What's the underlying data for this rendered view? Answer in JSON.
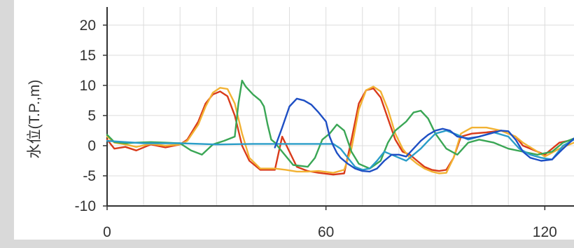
{
  "chart_data": {
    "type": "line",
    "title": "",
    "xlabel": "",
    "ylabel": "水位(T.P.,m)",
    "xlim": [
      0,
      128
    ],
    "ylim": [
      -10,
      23
    ],
    "xticks": [
      0,
      60,
      120
    ],
    "yticks": [
      20,
      15,
      10,
      5,
      0,
      -5,
      -10
    ],
    "x_tick_labels": [
      "0",
      "60",
      "120"
    ],
    "y_tick_labels": [
      "20",
      "15",
      "10",
      "5",
      "0",
      "-5",
      "-10"
    ],
    "grid": true,
    "series": [
      {
        "color": "#d93a1a",
        "points": [
          [
            0,
            1
          ],
          [
            2,
            -0.5
          ],
          [
            5,
            -0.2
          ],
          [
            8,
            -0.8
          ],
          [
            12,
            0.2
          ],
          [
            16,
            -0.3
          ],
          [
            20,
            0.2
          ],
          [
            22,
            1
          ],
          [
            25,
            4
          ],
          [
            27,
            7
          ],
          [
            29,
            8.5
          ],
          [
            31,
            9
          ],
          [
            33,
            8.2
          ],
          [
            35,
            5
          ],
          [
            37,
            0
          ],
          [
            39,
            -2.5
          ],
          [
            42,
            -4
          ],
          [
            46,
            -4
          ],
          [
            48,
            1.5
          ],
          [
            50,
            -1
          ],
          [
            52,
            -3.5
          ],
          [
            55,
            -4.2
          ],
          [
            58,
            -4.5
          ],
          [
            62,
            -4.8
          ],
          [
            65,
            -4.6
          ],
          [
            67,
            1
          ],
          [
            69,
            7
          ],
          [
            71,
            9.2
          ],
          [
            73,
            9.5
          ],
          [
            75,
            8
          ],
          [
            77,
            4.5
          ],
          [
            79,
            1
          ],
          [
            81,
            -1
          ],
          [
            83,
            -1.5
          ],
          [
            85,
            -2.5
          ],
          [
            87,
            -3.5
          ],
          [
            89,
            -4
          ],
          [
            91,
            -4.2
          ],
          [
            93,
            -4
          ],
          [
            95,
            -2
          ],
          [
            97,
            1.5
          ],
          [
            100,
            2
          ],
          [
            104,
            2.2
          ],
          [
            108,
            2.5
          ],
          [
            112,
            1.5
          ],
          [
            114,
            0
          ],
          [
            118,
            -1
          ],
          [
            120,
            -1.5
          ],
          [
            124,
            0.5
          ],
          [
            128,
            1
          ]
        ]
      },
      {
        "color": "#f2b233",
        "points": [
          [
            0,
            1.5
          ],
          [
            2,
            0.5
          ],
          [
            5,
            0.2
          ],
          [
            8,
            -0.2
          ],
          [
            12,
            0.3
          ],
          [
            16,
            0
          ],
          [
            20,
            0.2
          ],
          [
            22,
            0.8
          ],
          [
            25,
            3.5
          ],
          [
            27,
            6.5
          ],
          [
            29,
            8.8
          ],
          [
            31,
            9.6
          ],
          [
            33,
            9.4
          ],
          [
            35,
            7
          ],
          [
            37,
            2
          ],
          [
            39,
            -2
          ],
          [
            42,
            -3.8
          ],
          [
            46,
            -3.8
          ],
          [
            49,
            -4
          ],
          [
            52,
            -4.3
          ],
          [
            55,
            -4.3
          ],
          [
            58,
            -4.2
          ],
          [
            62,
            -4.5
          ],
          [
            65,
            -4
          ],
          [
            67,
            -0.5
          ],
          [
            69,
            6
          ],
          [
            71,
            9.2
          ],
          [
            73,
            9.8
          ],
          [
            75,
            9
          ],
          [
            77,
            6
          ],
          [
            79,
            2
          ],
          [
            81,
            -0.5
          ],
          [
            83,
            -2
          ],
          [
            85,
            -3
          ],
          [
            87,
            -3.8
          ],
          [
            89,
            -4.3
          ],
          [
            91,
            -4.6
          ],
          [
            93,
            -4.5
          ],
          [
            95,
            -2
          ],
          [
            97,
            2
          ],
          [
            100,
            3
          ],
          [
            104,
            3
          ],
          [
            108,
            2.5
          ],
          [
            112,
            1.5
          ],
          [
            114,
            0.5
          ],
          [
            118,
            -1
          ],
          [
            120,
            -1.8
          ],
          [
            124,
            -0.5
          ],
          [
            128,
            0.5
          ]
        ]
      },
      {
        "color": "#3aa655",
        "points": [
          [
            0,
            1.8
          ],
          [
            2,
            0.6
          ],
          [
            5,
            0.4
          ],
          [
            8,
            0.5
          ],
          [
            12,
            0.6
          ],
          [
            16,
            0.5
          ],
          [
            20,
            0.4
          ],
          [
            23,
            -0.8
          ],
          [
            26,
            -1.5
          ],
          [
            29,
            0.2
          ],
          [
            32,
            0.8
          ],
          [
            35,
            1.5
          ],
          [
            36,
            7
          ],
          [
            37,
            10.8
          ],
          [
            38,
            9.8
          ],
          [
            40,
            8.5
          ],
          [
            42,
            7.5
          ],
          [
            43,
            6.5
          ],
          [
            44,
            3.5
          ],
          [
            45,
            1
          ],
          [
            46,
            0.5
          ],
          [
            48,
            -1
          ],
          [
            51,
            -3.2
          ],
          [
            55,
            -3.5
          ],
          [
            57,
            -2
          ],
          [
            59,
            1
          ],
          [
            61,
            2
          ],
          [
            63,
            3.5
          ],
          [
            65,
            2.5
          ],
          [
            67,
            -1
          ],
          [
            69,
            -3
          ],
          [
            72,
            -3.8
          ],
          [
            75,
            -2.5
          ],
          [
            77,
            0.5
          ],
          [
            79,
            2.5
          ],
          [
            82,
            4
          ],
          [
            84,
            5.5
          ],
          [
            86,
            5.8
          ],
          [
            88,
            4.5
          ],
          [
            90,
            2
          ],
          [
            93,
            -0.5
          ],
          [
            96,
            -1.5
          ],
          [
            99,
            0.5
          ],
          [
            102,
            1
          ],
          [
            106,
            0.5
          ],
          [
            110,
            -0.5
          ],
          [
            114,
            -1
          ],
          [
            118,
            -1.5
          ],
          [
            122,
            -1
          ],
          [
            125,
            0.5
          ],
          [
            128,
            1.2
          ]
        ]
      },
      {
        "color": "#2a9dc8",
        "points": [
          [
            0,
            0.8
          ],
          [
            10,
            0.4
          ],
          [
            20,
            0.4
          ],
          [
            30,
            0.2
          ],
          [
            40,
            0.3
          ],
          [
            50,
            0.3
          ],
          [
            60,
            0.3
          ],
          [
            62,
            0.3
          ],
          [
            64,
            -0.5
          ],
          [
            66,
            -2
          ],
          [
            68,
            -3.5
          ],
          [
            70,
            -4
          ],
          [
            72,
            -3.8
          ],
          [
            74,
            -2.5
          ],
          [
            76,
            -1
          ],
          [
            78,
            -1.5
          ],
          [
            80,
            -2
          ],
          [
            82,
            -2.5
          ],
          [
            84,
            -1.5
          ],
          [
            86,
            -0.5
          ],
          [
            88,
            0.8
          ],
          [
            90,
            2
          ],
          [
            93,
            2.5
          ],
          [
            96,
            1.8
          ],
          [
            99,
            1
          ],
          [
            102,
            1.5
          ],
          [
            106,
            2.2
          ],
          [
            110,
            1.5
          ],
          [
            113,
            -0.5
          ],
          [
            116,
            -1.5
          ],
          [
            119,
            -2
          ],
          [
            122,
            -2.3
          ],
          [
            125,
            0
          ],
          [
            128,
            1
          ]
        ]
      },
      {
        "color": "#1e4fc4",
        "points": [
          [
            46,
            -0.3
          ],
          [
            48,
            3
          ],
          [
            50,
            6.5
          ],
          [
            52,
            7.8
          ],
          [
            54,
            7.5
          ],
          [
            56,
            6.8
          ],
          [
            58,
            5.5
          ],
          [
            60,
            4
          ],
          [
            61,
            1.5
          ],
          [
            62,
            0
          ],
          [
            63,
            -1.2
          ],
          [
            64,
            -2
          ],
          [
            66,
            -3
          ],
          [
            68,
            -3.8
          ],
          [
            70,
            -4.2
          ],
          [
            72,
            -4.3
          ],
          [
            74,
            -3.8
          ],
          [
            76,
            -2.5
          ],
          [
            78,
            -1.5
          ],
          [
            80,
            -1.5
          ],
          [
            82,
            -1.8
          ],
          [
            84,
            -0.5
          ],
          [
            86,
            0.8
          ],
          [
            88,
            1.8
          ],
          [
            90,
            2.5
          ],
          [
            92,
            2.8
          ],
          [
            94,
            2.5
          ],
          [
            96,
            1.5
          ],
          [
            99,
            1.2
          ],
          [
            102,
            1.5
          ],
          [
            105,
            2
          ],
          [
            108,
            2.5
          ],
          [
            110,
            2.4
          ],
          [
            112,
            1
          ],
          [
            114,
            -1
          ],
          [
            116,
            -2
          ],
          [
            119,
            -2.5
          ],
          [
            122,
            -2.3
          ],
          [
            125,
            -0.5
          ],
          [
            128,
            1.2
          ]
        ]
      }
    ]
  }
}
